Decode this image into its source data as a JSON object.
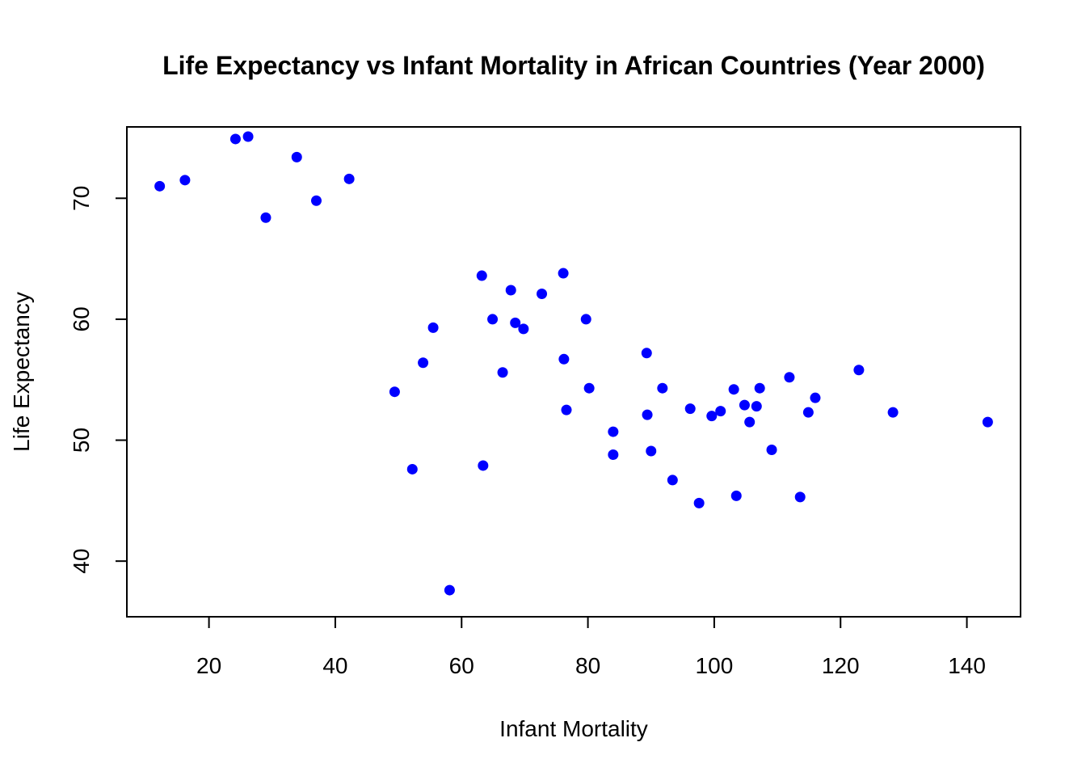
{
  "chart_data": {
    "type": "scatter",
    "title": "Life Expectancy vs Infant Mortality in African Countries (Year 2000)",
    "xlabel": "Infant Mortality",
    "ylabel": "Life Expectancy",
    "xlim": [
      7,
      148.5
    ],
    "ylim": [
      35.4,
      75.9
    ],
    "xticks": [
      20,
      40,
      60,
      80,
      100,
      120,
      140
    ],
    "yticks": [
      40,
      50,
      60,
      70
    ],
    "grid": false,
    "legend": "none",
    "point_color": "#0000ff",
    "series": [
      {
        "points": [
          [
            12.2,
            71.0
          ],
          [
            16.2,
            71.5
          ],
          [
            24.2,
            74.9
          ],
          [
            26.2,
            75.1
          ],
          [
            29.0,
            68.4
          ],
          [
            33.9,
            73.4
          ],
          [
            37.0,
            69.8
          ],
          [
            42.2,
            71.6
          ],
          [
            49.4,
            54.0
          ],
          [
            52.2,
            47.6
          ],
          [
            53.9,
            56.4
          ],
          [
            55.5,
            59.3
          ],
          [
            58.1,
            37.6
          ],
          [
            63.2,
            63.6
          ],
          [
            63.4,
            47.9
          ],
          [
            64.9,
            60.0
          ],
          [
            66.5,
            55.6
          ],
          [
            67.8,
            62.4
          ],
          [
            68.5,
            59.7
          ],
          [
            69.8,
            59.2
          ],
          [
            72.7,
            62.1
          ],
          [
            76.1,
            63.8
          ],
          [
            76.2,
            56.7
          ],
          [
            76.6,
            52.5
          ],
          [
            79.7,
            60.0
          ],
          [
            80.2,
            54.3
          ],
          [
            84.0,
            50.7
          ],
          [
            84.0,
            48.8
          ],
          [
            89.3,
            57.2
          ],
          [
            89.4,
            52.1
          ],
          [
            90.0,
            49.1
          ],
          [
            91.8,
            54.3
          ],
          [
            93.4,
            46.7
          ],
          [
            96.2,
            52.6
          ],
          [
            97.6,
            44.8
          ],
          [
            99.6,
            52.0
          ],
          [
            101.0,
            52.4
          ],
          [
            103.1,
            54.2
          ],
          [
            103.5,
            45.4
          ],
          [
            104.8,
            52.9
          ],
          [
            105.6,
            51.5
          ],
          [
            106.7,
            52.8
          ],
          [
            107.2,
            54.3
          ],
          [
            109.1,
            49.2
          ],
          [
            111.9,
            55.2
          ],
          [
            113.6,
            45.3
          ],
          [
            114.9,
            52.3
          ],
          [
            116.0,
            53.5
          ],
          [
            122.9,
            55.8
          ],
          [
            128.3,
            52.3
          ],
          [
            143.3,
            51.5
          ]
        ]
      }
    ]
  }
}
